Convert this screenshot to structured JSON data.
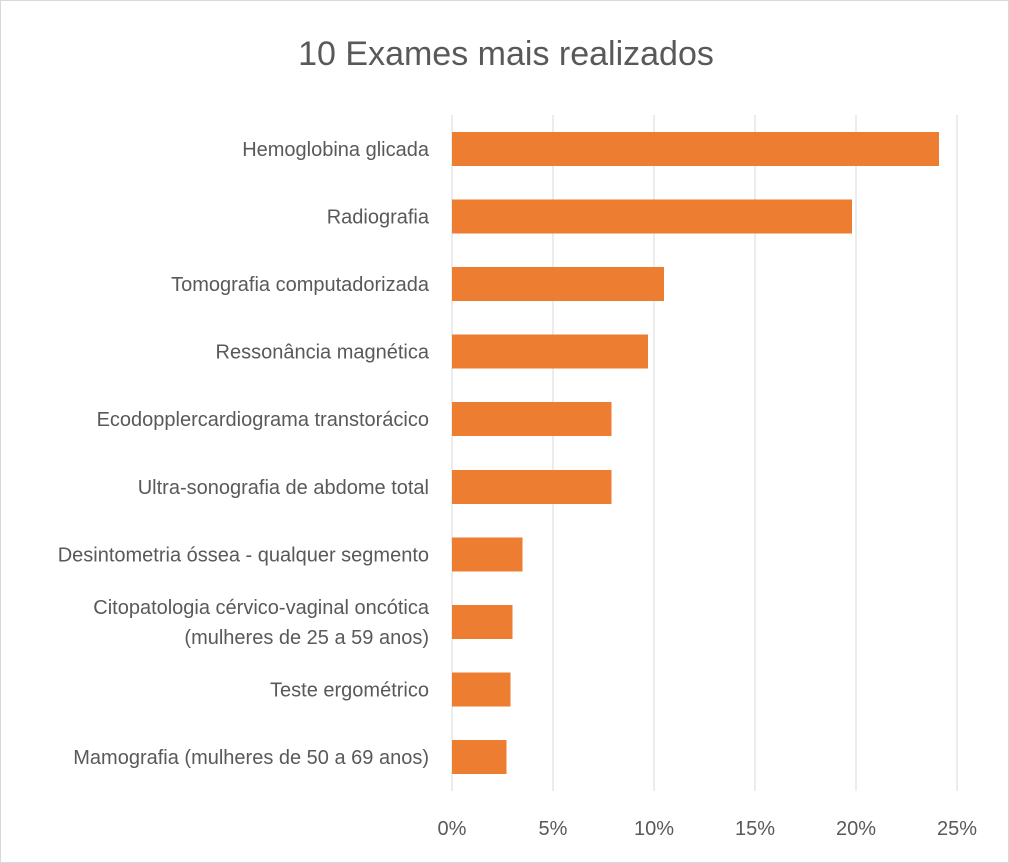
{
  "chart_data": {
    "type": "bar",
    "orientation": "horizontal",
    "title": "10 Exames mais realizados",
    "xlabel": "",
    "ylabel": "",
    "categories": [
      [
        "Hemoglobina glicada"
      ],
      [
        "Radiografia"
      ],
      [
        "Tomografia computadorizada"
      ],
      [
        "Ressonância magnética"
      ],
      [
        "Ecodopplercardiograma transtorácico"
      ],
      [
        "Ultra-sonografia de abdome total"
      ],
      [
        "Desintometria óssea - qualquer segmento"
      ],
      [
        "Citopatologia cérvico-vaginal oncótica",
        "(mulheres de 25 a 59 anos)"
      ],
      [
        "Teste ergométrico"
      ],
      [
        "Mamografia (mulheres de 50 a 69 anos)"
      ]
    ],
    "values": [
      24.1,
      19.8,
      10.5,
      9.7,
      7.9,
      7.9,
      3.5,
      3.0,
      2.9,
      2.7
    ],
    "xlim": [
      0,
      25
    ],
    "ticks": [
      "0%",
      "5%",
      "10%",
      "15%",
      "20%",
      "25%"
    ],
    "tick_values": [
      0,
      5,
      10,
      15,
      20,
      25
    ],
    "grid": true,
    "legend": "none",
    "bar_color": "#ED7D31",
    "grid_color": "#D9D9D9",
    "text_color": "#595959"
  }
}
